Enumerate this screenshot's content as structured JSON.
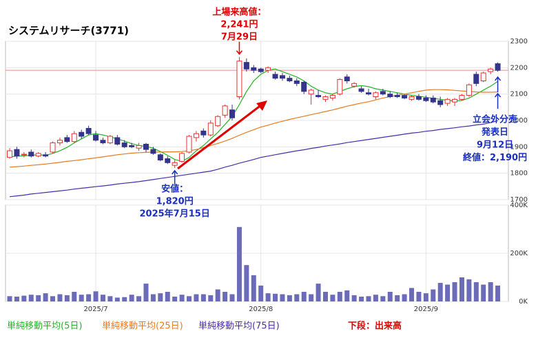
{
  "chart_data": {
    "type": "candlestick",
    "title": "システムリサーチ(3771)",
    "categories": [
      null,
      null,
      null,
      null,
      null,
      null,
      null,
      null,
      null,
      null,
      null,
      null,
      "2025/7",
      null,
      null,
      null,
      null,
      null,
      null,
      null,
      null,
      null,
      null,
      null,
      null,
      null,
      null,
      null,
      null,
      null,
      null,
      null,
      null,
      null,
      null,
      "2025/8",
      null,
      null,
      null,
      null,
      null,
      null,
      null,
      null,
      null,
      null,
      null,
      null,
      null,
      null,
      null,
      null,
      null,
      null,
      null,
      null,
      null,
      null,
      "2025/9",
      null,
      null,
      null,
      null,
      null,
      null,
      null,
      null,
      null,
      null
    ],
    "ohlc": {
      "up_color": "#e53030",
      "down_color": "#34348a",
      "open": [
        1860,
        1890,
        1870,
        1880,
        1865,
        1870,
        1880,
        1915,
        1935,
        1920,
        1955,
        1970,
        1945,
        1925,
        1915,
        1935,
        1915,
        1905,
        1895,
        1910,
        1890,
        1870,
        1855,
        1830,
        1845,
        1880,
        1935,
        1960,
        1945,
        1980,
        2020,
        2040,
        2090,
        2220,
        2200,
        2195,
        2190,
        2175,
        2170,
        2160,
        2150,
        2145,
        2100,
        2095,
        2080,
        2085,
        2100,
        2165,
        2130,
        2120,
        2105,
        2090,
        2110,
        2100,
        2095,
        2095,
        2080,
        2090,
        2085,
        2085,
        2075,
        2065,
        2070,
        2080,
        2095,
        2175,
        2150,
        2185,
        2215
      ],
      "high": [
        1895,
        1900,
        1880,
        1890,
        1880,
        1880,
        1920,
        1935,
        1945,
        1960,
        1965,
        1980,
        1960,
        1935,
        1945,
        1945,
        1925,
        1915,
        1915,
        1915,
        1900,
        1875,
        1865,
        1850,
        1880,
        1945,
        1960,
        1970,
        2000,
        2020,
        2060,
        2060,
        2241,
        2235,
        2210,
        2200,
        2205,
        2185,
        2180,
        2170,
        2160,
        2150,
        2120,
        2115,
        2095,
        2100,
        2160,
        2175,
        2145,
        2130,
        2120,
        2110,
        2120,
        2110,
        2105,
        2100,
        2095,
        2100,
        2095,
        2095,
        2090,
        2085,
        2085,
        2100,
        2140,
        2185,
        2185,
        2200,
        2220
      ],
      "low": [
        1855,
        1855,
        1860,
        1860,
        1860,
        1860,
        1875,
        1905,
        1915,
        1915,
        1930,
        1945,
        1920,
        1910,
        1910,
        1905,
        1895,
        1895,
        1885,
        1880,
        1870,
        1845,
        1835,
        1820,
        1840,
        1875,
        1920,
        1935,
        1940,
        1975,
        2010,
        2000,
        2080,
        2185,
        2180,
        2180,
        2180,
        2155,
        2150,
        2145,
        2130,
        2100,
        2060,
        2085,
        2070,
        2075,
        2095,
        2140,
        2125,
        2105,
        2095,
        2080,
        2095,
        2085,
        2085,
        2080,
        2075,
        2075,
        2070,
        2065,
        2050,
        2055,
        2055,
        2075,
        2090,
        2130,
        2145,
        2175,
        2185
      ],
      "close": [
        1885,
        1865,
        1872,
        1865,
        1875,
        1865,
        1915,
        1925,
        1920,
        1950,
        1940,
        1950,
        1925,
        1915,
        1940,
        1910,
        1900,
        1900,
        1905,
        1890,
        1875,
        1850,
        1840,
        1840,
        1875,
        1940,
        1950,
        1945,
        1990,
        2015,
        2055,
        2010,
        2225,
        2195,
        2190,
        2185,
        2200,
        2160,
        2160,
        2150,
        2140,
        2110,
        2115,
        2090,
        2090,
        2095,
        2155,
        2150,
        2140,
        2110,
        2100,
        2105,
        2100,
        2090,
        2090,
        2085,
        2090,
        2080,
        2075,
        2070,
        2060,
        2080,
        2080,
        2095,
        2135,
        2140,
        2180,
        2195,
        2190
      ]
    },
    "series": [
      {
        "name": "単純移動平均(5日)",
        "color": "#22b422",
        "values": [
          1862,
          1865,
          1866,
          1868,
          1870,
          1868,
          1875,
          1885,
          1898,
          1915,
          1930,
          1945,
          1950,
          1945,
          1938,
          1930,
          1922,
          1912,
          1905,
          1902,
          1895,
          1882,
          1868,
          1852,
          1845,
          1860,
          1885,
          1905,
          1930,
          1955,
          1985,
          2015,
          2060,
          2110,
          2150,
          2175,
          2190,
          2195,
          2185,
          2175,
          2165,
          2150,
          2130,
          2115,
          2105,
          2100,
          2110,
          2120,
          2128,
          2132,
          2128,
          2120,
          2115,
          2110,
          2105,
          2100,
          2095,
          2092,
          2088,
          2084,
          2080,
          2076,
          2074,
          2076,
          2085,
          2100,
          2115,
          2130,
          2148
        ]
      },
      {
        "name": "単純移動平均(25日)",
        "color": "#e87a1e",
        "values": [
          1823,
          1825,
          1827,
          1830,
          1832,
          1835,
          1838,
          1841,
          1845,
          1848,
          1851,
          1855,
          1858,
          1862,
          1866,
          1870,
          1873,
          1876,
          1878,
          1879,
          1880,
          1880,
          1881,
          1881,
          1882,
          1885,
          1890,
          1897,
          1905,
          1913,
          1922,
          1932,
          1944,
          1955,
          1965,
          1975,
          1982,
          1990,
          1997,
          2004,
          2010,
          2016,
          2022,
          2028,
          2034,
          2040,
          2047,
          2054,
          2060,
          2066,
          2071,
          2078,
          2085,
          2090,
          2096,
          2100,
          2105,
          2110,
          2115,
          2117,
          2117,
          2116,
          2114,
          2112,
          2110,
          2108,
          2107,
          2107,
          2108
        ]
      },
      {
        "name": "単純移動平均(75日)",
        "color": "#4a2aa8",
        "values": [
          1711,
          1714,
          1717,
          1721,
          1724,
          1727,
          1730,
          1733,
          1736,
          1740,
          1743,
          1746,
          1749,
          1752,
          1755,
          1759,
          1762,
          1765,
          1768,
          1772,
          1776,
          1780,
          1784,
          1788,
          1792,
          1796,
          1800,
          1804,
          1808,
          1815,
          1823,
          1830,
          1838,
          1845,
          1852,
          1860,
          1865,
          1870,
          1875,
          1880,
          1885,
          1889,
          1894,
          1898,
          1903,
          1907,
          1911,
          1916,
          1920,
          1924,
          1928,
          1932,
          1936,
          1940,
          1944,
          1948,
          1952,
          1955,
          1959,
          1962,
          1966,
          1969,
          1972,
          1976,
          1979,
          1983,
          1986,
          1992,
          1999
        ]
      }
    ],
    "ylim": [
      1700,
      2300
    ],
    "yticks": [
      1700,
      1800,
      1900,
      2000,
      2100,
      2200,
      2300
    ],
    "grid": true,
    "volume": {
      "label": "下段：出来高",
      "label_color": "#e00000",
      "color": "#6b6bb8",
      "values": [
        22000,
        20000,
        24000,
        28000,
        26000,
        34000,
        22000,
        30000,
        26000,
        40000,
        28000,
        30000,
        42000,
        28000,
        22000,
        16000,
        18000,
        28000,
        22000,
        74000,
        30000,
        34000,
        40000,
        20000,
        28000,
        22000,
        30000,
        30000,
        26000,
        50000,
        40000,
        30000,
        309000,
        151000,
        109000,
        66000,
        34000,
        32000,
        30000,
        26000,
        30000,
        40000,
        30000,
        74000,
        40000,
        28000,
        40000,
        46000,
        26000,
        20000,
        22000,
        28000,
        22000,
        40000,
        26000,
        30000,
        56000,
        40000,
        34000,
        50000,
        77000,
        70000,
        80000,
        100000,
        92000,
        80000,
        70000,
        80000,
        66000
      ],
      "ylim": [
        0,
        400000
      ],
      "yticks": [
        {
          "value": 0,
          "label": "0K"
        },
        {
          "value": 200000,
          "label": "200K"
        },
        {
          "value": 400000,
          "label": "400K"
        }
      ]
    },
    "annotations": [
      {
        "index": 32,
        "color": "#e00000",
        "lines": [
          "上場来高値：",
          "2,241円",
          "7月29日"
        ]
      },
      {
        "index": 23,
        "color": "#1a2fc0",
        "lines": [
          "安値：",
          "1,820円",
          "2025年7月15日"
        ]
      },
      {
        "index": 68,
        "color": "#1a2fc0",
        "lines": [
          "立会外分売",
          "発表日",
          "9月12日",
          "終値：2,190円"
        ]
      }
    ]
  }
}
